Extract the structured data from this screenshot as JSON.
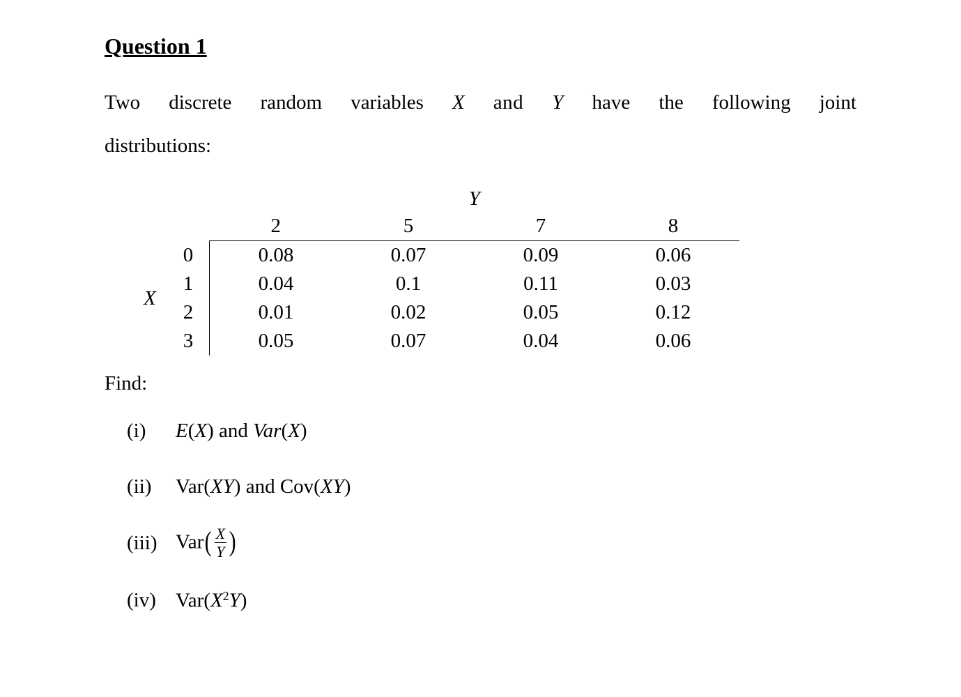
{
  "title": "Question 1",
  "intro": {
    "pre": "Two  discrete  random  variables ",
    "x": "X",
    "and": " and ",
    "y": "Y",
    "post": " have  the  following  joint",
    "w1": "Two",
    "w2": "discrete",
    "w3": "random",
    "w4": "variables",
    "w5": "have",
    "w6": "the",
    "w7": "following",
    "w8": "joint",
    "line2": "distributions:"
  },
  "table": {
    "x_label": "X",
    "y_label": "Y",
    "y_values": [
      "2",
      "5",
      "7",
      "8"
    ],
    "x_values": [
      "0",
      "1",
      "2",
      "3"
    ],
    "rows": [
      [
        "0.08",
        "0.07",
        "0.09",
        "0.06"
      ],
      [
        "0.04",
        "0.1",
        "0.11",
        "0.03"
      ],
      [
        "0.01",
        "0.02",
        "0.05",
        "0.12"
      ],
      [
        "0.05",
        "0.07",
        "0.04",
        "0.06"
      ]
    ]
  },
  "find_label": "Find:",
  "items": {
    "i": {
      "num": "(i)"
    },
    "ii": {
      "num": "(ii)"
    },
    "iii": {
      "num": "(iii)"
    },
    "iv": {
      "num": "(iv)"
    }
  },
  "math": {
    "E": "E",
    "Var_it": "Var",
    "Var_rm": "Var",
    "Cov_rm": "Cov",
    "X": "X",
    "Y": "Y",
    "XY": "XY",
    "and_word": " and ",
    "lp": "(",
    "rp": ")",
    "sq": "2"
  }
}
